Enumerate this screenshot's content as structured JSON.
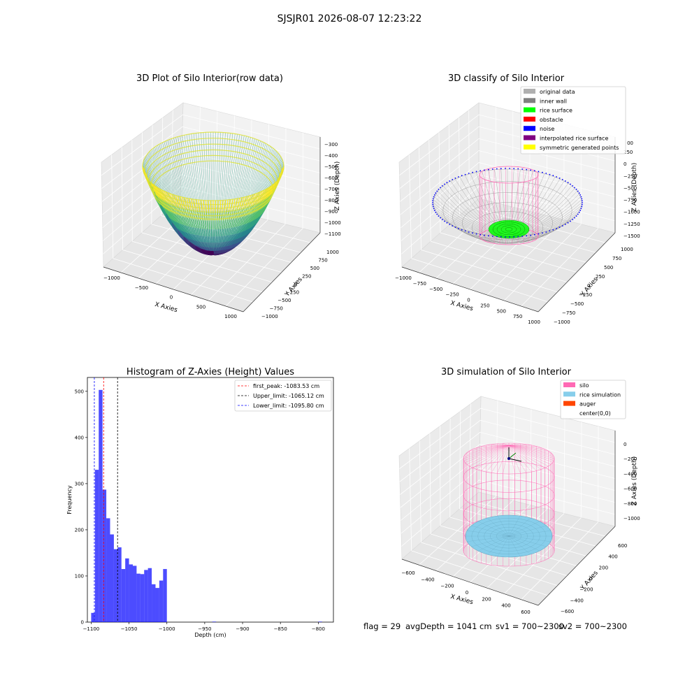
{
  "suptitle": "SJSJR01 2026-08-07 12:23:22",
  "colors": {
    "original_data": "#b0b0b0",
    "inner_wall": "#808080",
    "rice_surface": "#00ff00",
    "obstacle": "#ff0000",
    "noise": "#0000ff",
    "interpolated_rice_surface": "#800080",
    "symmetric_generated_points": "#ffff00",
    "silo": "#ff69b4",
    "rice_simulation": "#87ceeb",
    "auger": "#ff4500",
    "hist_bar": "#0000ff",
    "first_peak_line": "#ff0000",
    "upper_limit_line": "#000000",
    "lower_limit_line": "#0000ff"
  },
  "chart_data": [
    {
      "type": "scatter",
      "projection": "3d",
      "title": "3D Plot of Silo Interior(row data)",
      "xlabel": "X Axies",
      "ylabel": "Y Axies",
      "zlabel": "Z Axies (Depth)",
      "xlim": [
        -1100,
        1100
      ],
      "ylim": [
        -1100,
        1100
      ],
      "zlim": [
        -1150,
        -250
      ],
      "x_ticks": [
        "−1000",
        "−500",
        "0",
        "500",
        "1000"
      ],
      "y_ticks": [
        "−1000",
        "−750",
        "−500",
        "−250",
        "0",
        "250",
        "500",
        "750",
        "1000"
      ],
      "z_ticks": [
        "−300",
        "−400",
        "−500",
        "−600",
        "−700",
        "−800",
        "−900",
        "−1000",
        "−1100"
      ],
      "colormap": "viridis",
      "surface": {
        "shape": "paraboloid",
        "rim_radius": 1000,
        "rim_z": -300,
        "bottom_z": -1100
      }
    },
    {
      "type": "scatter",
      "projection": "3d",
      "title": "3D classify of Silo Interior",
      "xlabel": "X Axies",
      "ylabel": "Y Axies",
      "zlabel": "Z Axies (Depth)",
      "x_ticks": [
        "−1000",
        "−750",
        "−500",
        "−250",
        "0",
        "250",
        "500",
        "750",
        "1000"
      ],
      "y_ticks": [
        "−1000",
        "−750",
        "−500",
        "−250",
        "0",
        "250",
        "500",
        "750",
        "1000"
      ],
      "z_ticks": [
        "250",
        "0",
        "−250",
        "−500",
        "−750",
        "−1000",
        "−1250",
        "−1500"
      ],
      "z_tick_first_partial": "00",
      "legend": {
        "placement": "upper-right",
        "entries": [
          "original data",
          "inner wall",
          "rice surface",
          "obstacle",
          "noise",
          "interpolated rice surface",
          "symmetric generated points"
        ]
      }
    },
    {
      "type": "bar",
      "title": "Histogram of Z-Axies (Height) Values",
      "xlabel": "Depth (cm)",
      "ylabel": "Frequency",
      "xlim": [
        -1105,
        -780
      ],
      "ylim": [
        0,
        530
      ],
      "x_ticks": [
        -1100,
        -1050,
        -1000,
        -950,
        -900,
        -850,
        -800
      ],
      "x_tick_labels": [
        "−1100",
        "−1050",
        "−1000",
        "−950",
        "−900",
        "−850",
        "−800"
      ],
      "y_ticks": [
        0,
        100,
        200,
        300,
        400,
        500
      ],
      "bin_width": 5,
      "bins": [
        [
          -1100,
          20
        ],
        [
          -1095,
          330
        ],
        [
          -1090,
          503
        ],
        [
          -1085,
          287
        ],
        [
          -1080,
          225
        ],
        [
          -1075,
          190
        ],
        [
          -1070,
          158
        ],
        [
          -1065,
          162
        ],
        [
          -1060,
          115
        ],
        [
          -1055,
          138
        ],
        [
          -1050,
          125
        ],
        [
          -1045,
          122
        ],
        [
          -1040,
          105
        ],
        [
          -1035,
          104
        ],
        [
          -1030,
          113
        ],
        [
          -1025,
          117
        ],
        [
          -1020,
          82
        ],
        [
          -1015,
          74
        ],
        [
          -1010,
          90
        ],
        [
          -1005,
          115
        ],
        [
          -940,
          1
        ],
        [
          -800,
          1
        ]
      ],
      "vlines": [
        {
          "value": -1083.53,
          "label": "first_peak: -1083.53 cm",
          "color_key": "first_peak_line"
        },
        {
          "value": -1065.12,
          "label": "Upper_limit: -1065.12 cm",
          "color_key": "upper_limit_line"
        },
        {
          "value": -1095.8,
          "label": "Lower_limit: -1095.80 cm",
          "color_key": "lower_limit_line"
        }
      ],
      "legend": {
        "placement": "upper-right"
      }
    },
    {
      "type": "scatter",
      "projection": "3d",
      "title": "3D simulation of Silo Interior",
      "xlabel": "X Axies",
      "ylabel": "Y Axies",
      "zlabel": "Z Axies (Depth)",
      "x_ticks": [
        "−600",
        "−400",
        "−200",
        "0",
        "200",
        "400",
        "600"
      ],
      "y_ticks": [
        "−600",
        "−400",
        "−200",
        "0",
        "200",
        "400",
        "600"
      ],
      "z_ticks": [
        "0",
        "−200",
        "−400",
        "−600",
        "−800",
        "−1000"
      ],
      "legend": {
        "placement": "upper-right",
        "entries": [
          "silo",
          "rice simulation",
          "auger",
          "center(0,0)"
        ]
      }
    }
  ],
  "status": {
    "flag": "flag = 29",
    "avg": "avgDepth = 1041 cm",
    "sv1": "sv1 = 700~2300",
    "sv2": "sv2 = 700~2300"
  }
}
